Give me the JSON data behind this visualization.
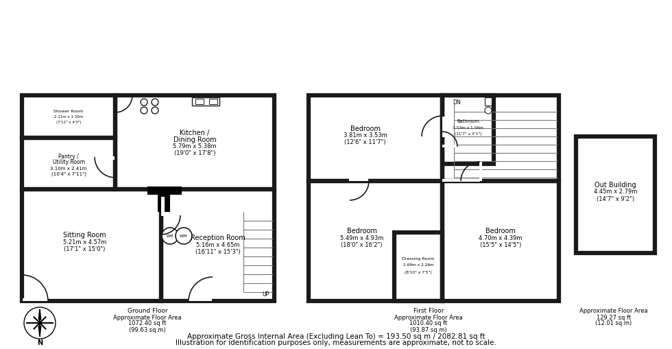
{
  "bg_color": "#ffffff",
  "wall_color": "#1a1a1a",
  "wall_lw": 4.5,
  "title_line1": "Approximate Gross Internal Area (Excluding Lean To) = 193.50 sq m / 2082.81 sq ft",
  "title_line2": "Illustration for identification purposes only, measurements are approximate, not to scale.",
  "ground_floor_line1": "Ground Floor",
  "ground_floor_line2": "Approximate Floor Area",
  "ground_floor_line3": "1072.40 sq ft",
  "ground_floor_line4": "(99.63 sq m)",
  "first_floor_line1": "First Floor",
  "first_floor_line2": "Approximate Floor Area",
  "first_floor_line3": "1010.40 sq ft",
  "first_floor_line4": "(93.87 sq m)",
  "ob_line1": "Approximate Floor Area",
  "ob_line2": "129.27 sq ft",
  "ob_line3": "(12.01 sq m)"
}
